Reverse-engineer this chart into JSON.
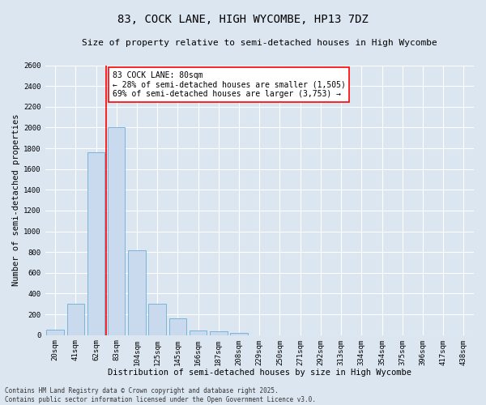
{
  "title": "83, COCK LANE, HIGH WYCOMBE, HP13 7DZ",
  "subtitle": "Size of property relative to semi-detached houses in High Wycombe",
  "xlabel": "Distribution of semi-detached houses by size in High Wycombe",
  "ylabel": "Number of semi-detached properties",
  "categories": [
    "20sqm",
    "41sqm",
    "62sqm",
    "83sqm",
    "104sqm",
    "125sqm",
    "145sqm",
    "166sqm",
    "187sqm",
    "208sqm",
    "229sqm",
    "250sqm",
    "271sqm",
    "292sqm",
    "313sqm",
    "334sqm",
    "354sqm",
    "375sqm",
    "396sqm",
    "417sqm",
    "438sqm"
  ],
  "values": [
    50,
    300,
    1760,
    2000,
    820,
    300,
    160,
    45,
    35,
    20,
    0,
    0,
    0,
    0,
    0,
    0,
    0,
    0,
    0,
    0,
    0
  ],
  "bar_color": "#c9d9ee",
  "bar_edge_color": "#6baed6",
  "highlight_line_index": 3,
  "annotation_title": "83 COCK LANE: 80sqm",
  "annotation_line1": "← 28% of semi-detached houses are smaller (1,505)",
  "annotation_line2": "69% of semi-detached houses are larger (3,753) →",
  "ylim": [
    0,
    2600
  ],
  "yticks": [
    0,
    200,
    400,
    600,
    800,
    1000,
    1200,
    1400,
    1600,
    1800,
    2000,
    2200,
    2400,
    2600
  ],
  "footer_line1": "Contains HM Land Registry data © Crown copyright and database right 2025.",
  "footer_line2": "Contains public sector information licensed under the Open Government Licence v3.0.",
  "background_color": "#dce6f1",
  "grid_color": "#ffffff",
  "title_fontsize": 10,
  "subtitle_fontsize": 8,
  "axis_label_fontsize": 7.5,
  "tick_fontsize": 6.5,
  "annotation_fontsize": 7,
  "footer_fontsize": 5.5
}
